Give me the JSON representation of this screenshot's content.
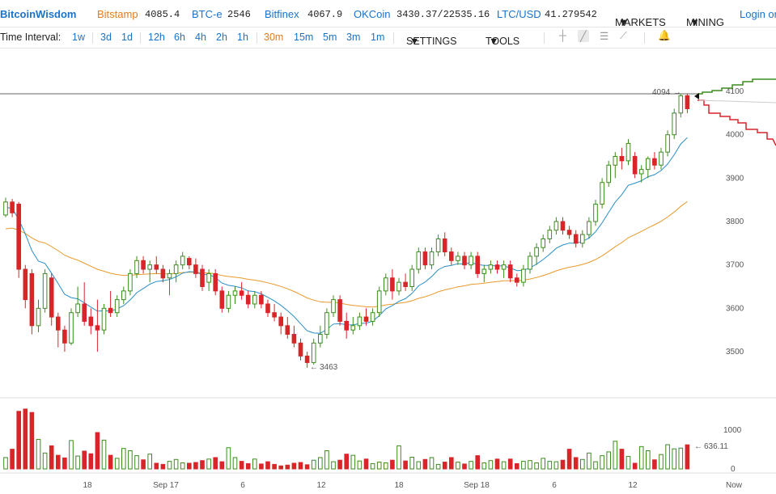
{
  "header": {
    "brand": "BitcoinWisdom",
    "tickers": [
      {
        "name": "Bitstamp",
        "price": "4085.4",
        "highlight": true
      },
      {
        "name": "BTC-e",
        "price": "2546",
        "highlight": false
      },
      {
        "name": "Bitfinex",
        "price": "4067.9",
        "highlight": false
      },
      {
        "name": "OKCoin",
        "price": "3430.37/22535.16",
        "highlight": false
      },
      {
        "name": "LTC/USD",
        "price": "41.279542",
        "highlight": false
      }
    ],
    "markets_label": "MARKETS",
    "mining_label": "MINING",
    "login_label": "Login or"
  },
  "toolbar": {
    "interval_label": "Time Interval:",
    "intervals": [
      "1w",
      "3d",
      "1d",
      "12h",
      "6h",
      "4h",
      "2h",
      "1h",
      "30m",
      "15m",
      "5m",
      "3m",
      "1m"
    ],
    "active_interval": "30m",
    "settings_label": "SETTINGS",
    "tools_label": "TOOLS",
    "tool_icons": [
      "crosshair-icon",
      "trendline-icon",
      "horizontal-lines-icon",
      "fan-icon",
      "bell-icon"
    ]
  },
  "chart_data": {
    "type": "candlestick",
    "price_ticks": [
      3500,
      3600,
      3700,
      3800,
      3900,
      4000,
      4100
    ],
    "volume_ticks": [
      0,
      1000
    ],
    "x_tick_labels": [
      "18",
      "Sep 17",
      "6",
      "12",
      "18",
      "Sep 18",
      "6",
      "12",
      "Now"
    ],
    "annotations": {
      "low": "3463",
      "high": "4094",
      "volume_now": "636.11"
    },
    "colors": {
      "up": "#3c8c1e",
      "down": "#d9242a",
      "ema_fast": "#2a8fc8",
      "ema_slow": "#e89a2c",
      "bid_depth": "#3c8c1e",
      "ask_depth": "#d9242a"
    },
    "candles": [
      {
        "o": 3815,
        "h": 3855,
        "l": 3810,
        "c": 3845
      },
      {
        "o": 3845,
        "h": 3852,
        "l": 3810,
        "c": 3820
      },
      {
        "o": 3840,
        "h": 3845,
        "l": 3670,
        "c": 3690
      },
      {
        "o": 3690,
        "h": 3700,
        "l": 3600,
        "c": 3620
      },
      {
        "o": 3680,
        "h": 3690,
        "l": 3540,
        "c": 3560
      },
      {
        "o": 3560,
        "h": 3620,
        "l": 3545,
        "c": 3600
      },
      {
        "o": 3600,
        "h": 3690,
        "l": 3590,
        "c": 3680
      },
      {
        "o": 3670,
        "h": 3680,
        "l": 3560,
        "c": 3580
      },
      {
        "o": 3580,
        "h": 3590,
        "l": 3510,
        "c": 3550
      },
      {
        "o": 3550,
        "h": 3560,
        "l": 3500,
        "c": 3520
      },
      {
        "o": 3520,
        "h": 3600,
        "l": 3515,
        "c": 3590
      },
      {
        "o": 3590,
        "h": 3650,
        "l": 3580,
        "c": 3610
      },
      {
        "o": 3610,
        "h": 3660,
        "l": 3560,
        "c": 3570
      },
      {
        "o": 3580,
        "h": 3600,
        "l": 3540,
        "c": 3560
      },
      {
        "o": 3560,
        "h": 3620,
        "l": 3500,
        "c": 3550
      },
      {
        "o": 3550,
        "h": 3610,
        "l": 3540,
        "c": 3600
      },
      {
        "o": 3600,
        "h": 3640,
        "l": 3580,
        "c": 3590
      },
      {
        "o": 3590,
        "h": 3630,
        "l": 3580,
        "c": 3620
      },
      {
        "o": 3620,
        "h": 3650,
        "l": 3610,
        "c": 3640
      },
      {
        "o": 3640,
        "h": 3690,
        "l": 3630,
        "c": 3680
      },
      {
        "o": 3680,
        "h": 3720,
        "l": 3670,
        "c": 3710
      },
      {
        "o": 3710,
        "h": 3720,
        "l": 3680,
        "c": 3690
      },
      {
        "o": 3690,
        "h": 3710,
        "l": 3660,
        "c": 3700
      },
      {
        "o": 3700,
        "h": 3720,
        "l": 3680,
        "c": 3690
      },
      {
        "o": 3690,
        "h": 3700,
        "l": 3660,
        "c": 3670
      },
      {
        "o": 3670,
        "h": 3690,
        "l": 3630,
        "c": 3680
      },
      {
        "o": 3680,
        "h": 3710,
        "l": 3660,
        "c": 3700
      },
      {
        "o": 3700,
        "h": 3730,
        "l": 3690,
        "c": 3720
      },
      {
        "o": 3715,
        "h": 3720,
        "l": 3690,
        "c": 3700
      },
      {
        "o": 3700,
        "h": 3715,
        "l": 3670,
        "c": 3680
      },
      {
        "o": 3690,
        "h": 3700,
        "l": 3640,
        "c": 3650
      },
      {
        "o": 3660,
        "h": 3690,
        "l": 3640,
        "c": 3680
      },
      {
        "o": 3680,
        "h": 3690,
        "l": 3630,
        "c": 3640
      },
      {
        "o": 3640,
        "h": 3650,
        "l": 3590,
        "c": 3600
      },
      {
        "o": 3600,
        "h": 3640,
        "l": 3590,
        "c": 3630
      },
      {
        "o": 3630,
        "h": 3650,
        "l": 3610,
        "c": 3640
      },
      {
        "o": 3640,
        "h": 3660,
        "l": 3620,
        "c": 3630
      },
      {
        "o": 3630,
        "h": 3640,
        "l": 3600,
        "c": 3610
      },
      {
        "o": 3610,
        "h": 3640,
        "l": 3600,
        "c": 3630
      },
      {
        "o": 3630,
        "h": 3640,
        "l": 3600,
        "c": 3610
      },
      {
        "o": 3610,
        "h": 3620,
        "l": 3580,
        "c": 3590
      },
      {
        "o": 3590,
        "h": 3610,
        "l": 3570,
        "c": 3580
      },
      {
        "o": 3580,
        "h": 3590,
        "l": 3540,
        "c": 3560
      },
      {
        "o": 3560,
        "h": 3580,
        "l": 3530,
        "c": 3540
      },
      {
        "o": 3540,
        "h": 3560,
        "l": 3510,
        "c": 3520
      },
      {
        "o": 3520,
        "h": 3530,
        "l": 3480,
        "c": 3490
      },
      {
        "o": 3490,
        "h": 3500,
        "l": 3463,
        "c": 3475
      },
      {
        "o": 3475,
        "h": 3530,
        "l": 3470,
        "c": 3520
      },
      {
        "o": 3520,
        "h": 3560,
        "l": 3510,
        "c": 3540
      },
      {
        "o": 3540,
        "h": 3600,
        "l": 3530,
        "c": 3590
      },
      {
        "o": 3590,
        "h": 3630,
        "l": 3580,
        "c": 3620
      },
      {
        "o": 3620,
        "h": 3630,
        "l": 3560,
        "c": 3570
      },
      {
        "o": 3570,
        "h": 3590,
        "l": 3530,
        "c": 3550
      },
      {
        "o": 3550,
        "h": 3580,
        "l": 3540,
        "c": 3560
      },
      {
        "o": 3560,
        "h": 3590,
        "l": 3550,
        "c": 3580
      },
      {
        "o": 3580,
        "h": 3600,
        "l": 3560,
        "c": 3570
      },
      {
        "o": 3570,
        "h": 3600,
        "l": 3560,
        "c": 3590
      },
      {
        "o": 3590,
        "h": 3650,
        "l": 3580,
        "c": 3640
      },
      {
        "o": 3640,
        "h": 3680,
        "l": 3630,
        "c": 3670
      },
      {
        "o": 3670,
        "h": 3690,
        "l": 3620,
        "c": 3640
      },
      {
        "o": 3640,
        "h": 3670,
        "l": 3630,
        "c": 3660
      },
      {
        "o": 3660,
        "h": 3680,
        "l": 3640,
        "c": 3650
      },
      {
        "o": 3650,
        "h": 3700,
        "l": 3640,
        "c": 3690
      },
      {
        "o": 3690,
        "h": 3740,
        "l": 3680,
        "c": 3730
      },
      {
        "o": 3730,
        "h": 3740,
        "l": 3690,
        "c": 3700
      },
      {
        "o": 3700,
        "h": 3740,
        "l": 3690,
        "c": 3730
      },
      {
        "o": 3730,
        "h": 3770,
        "l": 3720,
        "c": 3760
      },
      {
        "o": 3760,
        "h": 3775,
        "l": 3720,
        "c": 3730
      },
      {
        "o": 3730,
        "h": 3740,
        "l": 3700,
        "c": 3710
      },
      {
        "o": 3710,
        "h": 3730,
        "l": 3700,
        "c": 3720
      },
      {
        "o": 3720,
        "h": 3730,
        "l": 3690,
        "c": 3700
      },
      {
        "o": 3700,
        "h": 3730,
        "l": 3690,
        "c": 3720
      },
      {
        "o": 3720,
        "h": 3730,
        "l": 3670,
        "c": 3680
      },
      {
        "o": 3680,
        "h": 3700,
        "l": 3660,
        "c": 3690
      },
      {
        "o": 3690,
        "h": 3710,
        "l": 3680,
        "c": 3700
      },
      {
        "o": 3700,
        "h": 3710,
        "l": 3680,
        "c": 3690
      },
      {
        "o": 3690,
        "h": 3710,
        "l": 3670,
        "c": 3700
      },
      {
        "o": 3700,
        "h": 3710,
        "l": 3660,
        "c": 3670
      },
      {
        "o": 3670,
        "h": 3680,
        "l": 3650,
        "c": 3660
      },
      {
        "o": 3660,
        "h": 3700,
        "l": 3650,
        "c": 3690
      },
      {
        "o": 3690,
        "h": 3730,
        "l": 3680,
        "c": 3720
      },
      {
        "o": 3720,
        "h": 3750,
        "l": 3700,
        "c": 3740
      },
      {
        "o": 3740,
        "h": 3770,
        "l": 3730,
        "c": 3760
      },
      {
        "o": 3760,
        "h": 3790,
        "l": 3750,
        "c": 3780
      },
      {
        "o": 3780,
        "h": 3810,
        "l": 3770,
        "c": 3800
      },
      {
        "o": 3800,
        "h": 3810,
        "l": 3770,
        "c": 3780
      },
      {
        "o": 3780,
        "h": 3790,
        "l": 3760,
        "c": 3770
      },
      {
        "o": 3770,
        "h": 3780,
        "l": 3740,
        "c": 3750
      },
      {
        "o": 3750,
        "h": 3780,
        "l": 3740,
        "c": 3770
      },
      {
        "o": 3770,
        "h": 3810,
        "l": 3760,
        "c": 3800
      },
      {
        "o": 3800,
        "h": 3850,
        "l": 3790,
        "c": 3840
      },
      {
        "o": 3840,
        "h": 3900,
        "l": 3830,
        "c": 3890
      },
      {
        "o": 3890,
        "h": 3940,
        "l": 3880,
        "c": 3930
      },
      {
        "o": 3930,
        "h": 3960,
        "l": 3900,
        "c": 3950
      },
      {
        "o": 3950,
        "h": 3970,
        "l": 3920,
        "c": 3940
      },
      {
        "o": 3940,
        "h": 3990,
        "l": 3930,
        "c": 3980
      },
      {
        "o": 3950,
        "h": 3960,
        "l": 3900,
        "c": 3910
      },
      {
        "o": 3910,
        "h": 3930,
        "l": 3890,
        "c": 3920
      },
      {
        "o": 3920,
        "h": 3950,
        "l": 3900,
        "c": 3945
      },
      {
        "o": 3945,
        "h": 3960,
        "l": 3920,
        "c": 3930
      },
      {
        "o": 3930,
        "h": 3970,
        "l": 3920,
        "c": 3960
      },
      {
        "o": 3960,
        "h": 4010,
        "l": 3950,
        "c": 4000
      },
      {
        "o": 4000,
        "h": 4060,
        "l": 3990,
        "c": 4050
      },
      {
        "o": 4050,
        "h": 4094,
        "l": 4040,
        "c": 4090
      },
      {
        "o": 4090,
        "h": 4094,
        "l": 4050,
        "c": 4060
      }
    ],
    "volumes": [
      300,
      520,
      1520,
      1580,
      1490,
      780,
      420,
      610,
      360,
      290,
      750,
      340,
      470,
      400,
      960,
      760,
      360,
      280,
      540,
      480,
      350,
      240,
      390,
      150,
      120,
      200,
      250,
      160,
      150,
      170,
      220,
      260,
      300,
      190,
      560,
      300,
      200,
      140,
      260,
      130,
      190,
      120,
      80,
      100,
      150,
      170,
      110,
      230,
      300,
      480,
      190,
      230,
      390,
      360,
      210,
      260,
      140,
      180,
      160,
      230,
      610,
      210,
      310,
      190,
      250,
      300,
      120,
      180,
      300,
      180,
      130,
      200,
      350,
      160,
      220,
      260,
      190,
      260,
      140,
      200,
      220,
      160,
      280,
      200,
      190,
      230,
      520,
      300,
      250,
      420,
      190,
      350,
      450,
      730,
      520,
      330,
      150,
      590,
      480,
      240,
      380,
      640,
      530,
      550,
      636
    ]
  }
}
